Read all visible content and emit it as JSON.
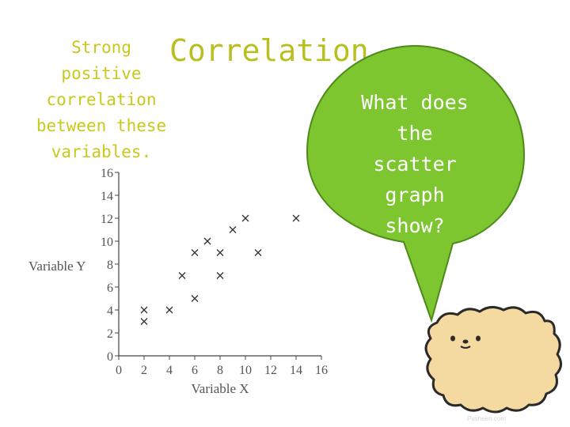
{
  "title": "Correlation",
  "caption_lines": [
    "Strong",
    "positive",
    "correlation",
    "between these",
    "variables."
  ],
  "speech_bubble_lines": [
    "What does",
    "the",
    "scatter",
    "graph",
    "show?"
  ],
  "credit": "Pusheen.com",
  "colors": {
    "title": "#b8bf1f",
    "caption": "#c8c91a",
    "bubble_fill": "#7dc62f",
    "bubble_stroke": "#4e8a19",
    "bubble_text": "#ffffff"
  },
  "illustration": "fluffy-dog-icon",
  "chart_data": {
    "type": "scatter",
    "xlabel": "Variable X",
    "ylabel": "Variable Y",
    "xlim": [
      0,
      16
    ],
    "ylim": [
      0,
      16
    ],
    "xticks": [
      0,
      2,
      4,
      6,
      8,
      10,
      12,
      14,
      16
    ],
    "yticks": [
      0,
      2,
      4,
      6,
      8,
      10,
      12,
      14,
      16
    ],
    "marker": "x",
    "points": [
      {
        "x": 2,
        "y": 4
      },
      {
        "x": 2,
        "y": 3
      },
      {
        "x": 4,
        "y": 4
      },
      {
        "x": 5,
        "y": 7
      },
      {
        "x": 6,
        "y": 5
      },
      {
        "x": 6,
        "y": 9
      },
      {
        "x": 7,
        "y": 10
      },
      {
        "x": 8,
        "y": 9
      },
      {
        "x": 8,
        "y": 7
      },
      {
        "x": 9,
        "y": 11
      },
      {
        "x": 10,
        "y": 12
      },
      {
        "x": 11,
        "y": 9
      },
      {
        "x": 14,
        "y": 12
      }
    ]
  }
}
